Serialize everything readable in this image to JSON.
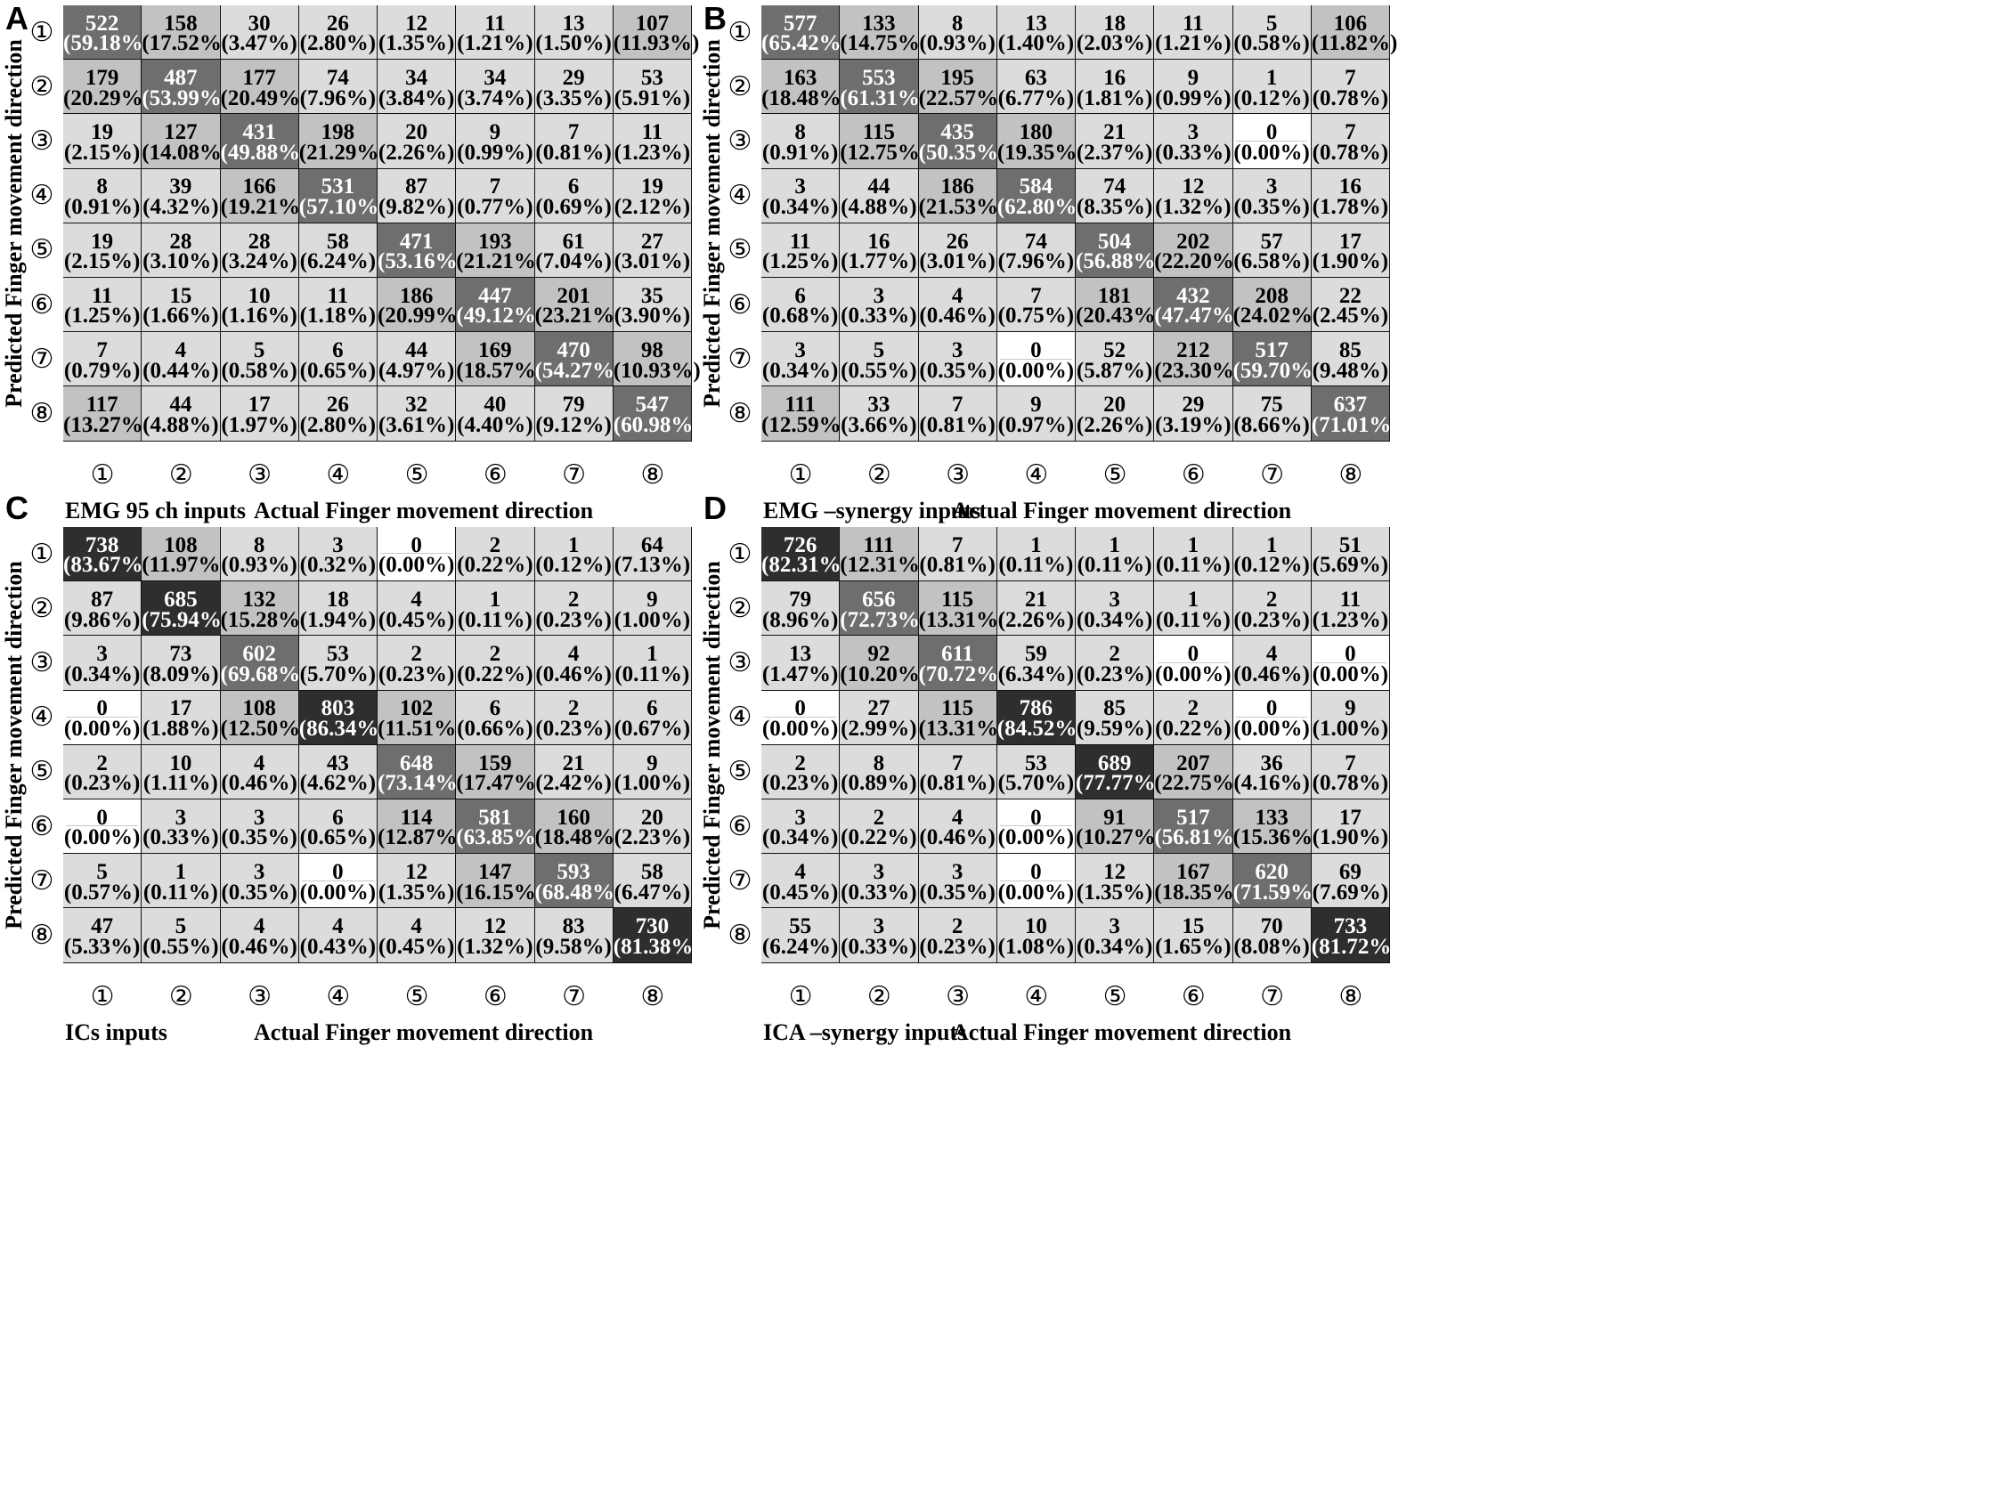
{
  "direction_symbols": [
    "①",
    "②",
    "③",
    "④",
    "⑤",
    "⑥",
    "⑦",
    "⑧"
  ],
  "y_axis_label": "Predicted  Finger movement direction",
  "x_axis_label": "Actual Finger movement direction",
  "colors": {
    "white": "#ffffff",
    "light": "#dcdcdc",
    "medium": "#c2c2c2",
    "dark": "#6e6e6e",
    "darkest": "#2e2e2e",
    "border": "#000000"
  },
  "chart_data": [
    {
      "type": "heatmap",
      "panel": "A",
      "title": "EMG 95 ch inputs",
      "xlabel": "Actual Finger movement direction",
      "ylabel": "Predicted  Finger movement direction",
      "categories": [
        "①",
        "②",
        "③",
        "④",
        "⑤",
        "⑥",
        "⑦",
        "⑧"
      ],
      "counts": [
        [
          522,
          158,
          30,
          26,
          12,
          11,
          13,
          107
        ],
        [
          179,
          487,
          177,
          74,
          34,
          34,
          29,
          53
        ],
        [
          19,
          127,
          431,
          198,
          20,
          9,
          7,
          11
        ],
        [
          8,
          39,
          166,
          531,
          87,
          7,
          6,
          19
        ],
        [
          19,
          28,
          28,
          58,
          471,
          193,
          61,
          27
        ],
        [
          11,
          15,
          10,
          11,
          186,
          447,
          201,
          35
        ],
        [
          7,
          4,
          5,
          6,
          44,
          169,
          470,
          98
        ],
        [
          117,
          44,
          17,
          26,
          32,
          40,
          79,
          547
        ]
      ],
      "percents": [
        [
          "(59.18%)",
          "(17.52%)",
          "(3.47%)",
          "(2.80%)",
          "(1.35%)",
          "(1.21%)",
          "(1.50%)",
          "(11.93%)"
        ],
        [
          "(20.29%)",
          "(53.99%)",
          "(20.49%)",
          "(7.96%)",
          "(3.84%)",
          "(3.74%)",
          "(3.35%)",
          "(5.91%)"
        ],
        [
          "(2.15%)",
          "(14.08%)",
          "(49.88%)",
          "(21.29%)",
          "(2.26%)",
          "(0.99%)",
          "(0.81%)",
          "(1.23%)"
        ],
        [
          "(0.91%)",
          "(4.32%)",
          "(19.21%)",
          "(57.10%)",
          "(9.82%)",
          "(0.77%)",
          "(0.69%)",
          "(2.12%)"
        ],
        [
          "(2.15%)",
          "(3.10%)",
          "(3.24%)",
          "(6.24%)",
          "(53.16%)",
          "(21.21%)",
          "(7.04%)",
          "(3.01%)"
        ],
        [
          "(1.25%)",
          "(1.66%)",
          "(1.16%)",
          "(1.18%)",
          "(20.99%)",
          "(49.12%)",
          "(23.21%)",
          "(3.90%)"
        ],
        [
          "(0.79%)",
          "(0.44%)",
          "(0.58%)",
          "(0.65%)",
          "(4.97%)",
          "(18.57%)",
          "(54.27%)",
          "(10.93%)"
        ],
        [
          "(13.27%)",
          "(4.88%)",
          "(1.97%)",
          "(2.80%)",
          "(3.61%)",
          "(4.40%)",
          "(9.12%)",
          "(60.98%)"
        ]
      ]
    },
    {
      "type": "heatmap",
      "panel": "B",
      "title": "EMG –synergy inputs",
      "xlabel": "Actual Finger movement direction",
      "ylabel": "Predicted  Finger movement direction",
      "categories": [
        "①",
        "②",
        "③",
        "④",
        "⑤",
        "⑥",
        "⑦",
        "⑧"
      ],
      "counts": [
        [
          577,
          133,
          8,
          13,
          18,
          11,
          5,
          106
        ],
        [
          163,
          553,
          195,
          63,
          16,
          9,
          1,
          7
        ],
        [
          8,
          115,
          435,
          180,
          21,
          3,
          0,
          7
        ],
        [
          3,
          44,
          186,
          584,
          74,
          12,
          3,
          16
        ],
        [
          11,
          16,
          26,
          74,
          504,
          202,
          57,
          17
        ],
        [
          6,
          3,
          4,
          7,
          181,
          432,
          208,
          22
        ],
        [
          3,
          5,
          3,
          0,
          52,
          212,
          517,
          85
        ],
        [
          111,
          33,
          7,
          9,
          20,
          29,
          75,
          637
        ]
      ],
      "percents": [
        [
          "(65.42%)",
          "(14.75%)",
          "(0.93%)",
          "(1.40%)",
          "(2.03%)",
          "(1.21%)",
          "(0.58%)",
          "(11.82%)"
        ],
        [
          "(18.48%)",
          "(61.31%)",
          "(22.57%)",
          "(6.77%)",
          "(1.81%)",
          "(0.99%)",
          "(0.12%)",
          "(0.78%)"
        ],
        [
          "(0.91%)",
          "(12.75%)",
          "(50.35%)",
          "(19.35%)",
          "(2.37%)",
          "(0.33%)",
          "(0.00%)",
          "(0.78%)"
        ],
        [
          "(0.34%)",
          "(4.88%)",
          "(21.53%)",
          "(62.80%)",
          "(8.35%)",
          "(1.32%)",
          "(0.35%)",
          "(1.78%)"
        ],
        [
          "(1.25%)",
          "(1.77%)",
          "(3.01%)",
          "(7.96%)",
          "(56.88%)",
          "(22.20%)",
          "(6.58%)",
          "(1.90%)"
        ],
        [
          "(0.68%)",
          "(0.33%)",
          "(0.46%)",
          "(0.75%)",
          "(20.43%)",
          "(47.47%)",
          "(24.02%)",
          "(2.45%)"
        ],
        [
          "(0.34%)",
          "(0.55%)",
          "(0.35%)",
          "(0.00%)",
          "(5.87%)",
          "(23.30%)",
          "(59.70%)",
          "(9.48%)"
        ],
        [
          "(12.59%)",
          "(3.66%)",
          "(0.81%)",
          "(0.97%)",
          "(2.26%)",
          "(3.19%)",
          "(8.66%)",
          "(71.01%)"
        ]
      ]
    },
    {
      "type": "heatmap",
      "panel": "C",
      "title": "ICs inputs",
      "xlabel": "Actual Finger movement direction",
      "ylabel": "Predicted  Finger movement direction",
      "categories": [
        "①",
        "②",
        "③",
        "④",
        "⑤",
        "⑥",
        "⑦",
        "⑧"
      ],
      "counts": [
        [
          738,
          108,
          8,
          3,
          0,
          2,
          1,
          64
        ],
        [
          87,
          685,
          132,
          18,
          4,
          1,
          2,
          9
        ],
        [
          3,
          73,
          602,
          53,
          2,
          2,
          4,
          1
        ],
        [
          0,
          17,
          108,
          803,
          102,
          6,
          2,
          6
        ],
        [
          2,
          10,
          4,
          43,
          648,
          159,
          21,
          9
        ],
        [
          0,
          3,
          3,
          6,
          114,
          581,
          160,
          20
        ],
        [
          5,
          1,
          3,
          0,
          12,
          147,
          593,
          58
        ],
        [
          47,
          5,
          4,
          4,
          4,
          12,
          83,
          730
        ]
      ],
      "percents": [
        [
          "(83.67%)",
          "(11.97%)",
          "(0.93%)",
          "(0.32%)",
          "(0.00%)",
          "(0.22%)",
          "(0.12%)",
          "(7.13%)"
        ],
        [
          "(9.86%)",
          "(75.94%)",
          "(15.28%)",
          "(1.94%)",
          "(0.45%)",
          "(0.11%)",
          "(0.23%)",
          "(1.00%)"
        ],
        [
          "(0.34%)",
          "(8.09%)",
          "(69.68%)",
          "(5.70%)",
          "(0.23%)",
          "(0.22%)",
          "(0.46%)",
          "(0.11%)"
        ],
        [
          "(0.00%)",
          "(1.88%)",
          "(12.50%)",
          "(86.34%)",
          "(11.51%)",
          "(0.66%)",
          "(0.23%)",
          "(0.67%)"
        ],
        [
          "(0.23%)",
          "(1.11%)",
          "(0.46%)",
          "(4.62%)",
          "(73.14%)",
          "(17.47%)",
          "(2.42%)",
          "(1.00%)"
        ],
        [
          "(0.00%)",
          "(0.33%)",
          "(0.35%)",
          "(0.65%)",
          "(12.87%)",
          "(63.85%)",
          "(18.48%)",
          "(2.23%)"
        ],
        [
          "(0.57%)",
          "(0.11%)",
          "(0.35%)",
          "(0.00%)",
          "(1.35%)",
          "(16.15%)",
          "(68.48%)",
          "(6.47%)"
        ],
        [
          "(5.33%)",
          "(0.55%)",
          "(0.46%)",
          "(0.43%)",
          "(0.45%)",
          "(1.32%)",
          "(9.58%)",
          "(81.38%)"
        ]
      ]
    },
    {
      "type": "heatmap",
      "panel": "D",
      "title": "ICA –synergy inputs",
      "xlabel": "Actual Finger movement direction",
      "ylabel": "Predicted  Finger movement direction",
      "categories": [
        "①",
        "②",
        "③",
        "④",
        "⑤",
        "⑥",
        "⑦",
        "⑧"
      ],
      "counts": [
        [
          726,
          111,
          7,
          1,
          1,
          1,
          1,
          51
        ],
        [
          79,
          656,
          115,
          21,
          3,
          1,
          2,
          11
        ],
        [
          13,
          92,
          611,
          59,
          2,
          0,
          4,
          0
        ],
        [
          0,
          27,
          115,
          786,
          85,
          2,
          0,
          9
        ],
        [
          2,
          8,
          7,
          53,
          689,
          207,
          36,
          7
        ],
        [
          3,
          2,
          4,
          0,
          91,
          517,
          133,
          17
        ],
        [
          4,
          3,
          3,
          0,
          12,
          167,
          620,
          69
        ],
        [
          55,
          3,
          2,
          10,
          3,
          15,
          70,
          733
        ]
      ],
      "percents": [
        [
          "(82.31%)",
          "(12.31%)",
          "(0.81%)",
          "(0.11%)",
          "(0.11%)",
          "(0.11%)",
          "(0.12%)",
          "(5.69%)"
        ],
        [
          "(8.96%)",
          "(72.73%)",
          "(13.31%)",
          "(2.26%)",
          "(0.34%)",
          "(0.11%)",
          "(0.23%)",
          "(1.23%)"
        ],
        [
          "(1.47%)",
          "(10.20%)",
          "(70.72%)",
          "(6.34%)",
          "(0.23%)",
          "(0.00%)",
          "(0.46%)",
          "(0.00%)"
        ],
        [
          "(0.00%)",
          "(2.99%)",
          "(13.31%)",
          "(84.52%)",
          "(9.59%)",
          "(0.22%)",
          "(0.00%)",
          "(1.00%)"
        ],
        [
          "(0.23%)",
          "(0.89%)",
          "(0.81%)",
          "(5.70%)",
          "(77.77%)",
          "(22.75%)",
          "(4.16%)",
          "(0.78%)"
        ],
        [
          "(0.34%)",
          "(0.22%)",
          "(0.46%)",
          "(0.00%)",
          "(10.27%)",
          "(56.81%)",
          "(15.36%)",
          "(1.90%)"
        ],
        [
          "(0.45%)",
          "(0.33%)",
          "(0.35%)",
          "(0.00%)",
          "(1.35%)",
          "(18.35%)",
          "(71.59%)",
          "(7.69%)"
        ],
        [
          "(6.24%)",
          "(0.33%)",
          "(0.23%)",
          "(1.08%)",
          "(0.34%)",
          "(1.65%)",
          "(8.08%)",
          "(81.72%)"
        ]
      ]
    }
  ]
}
